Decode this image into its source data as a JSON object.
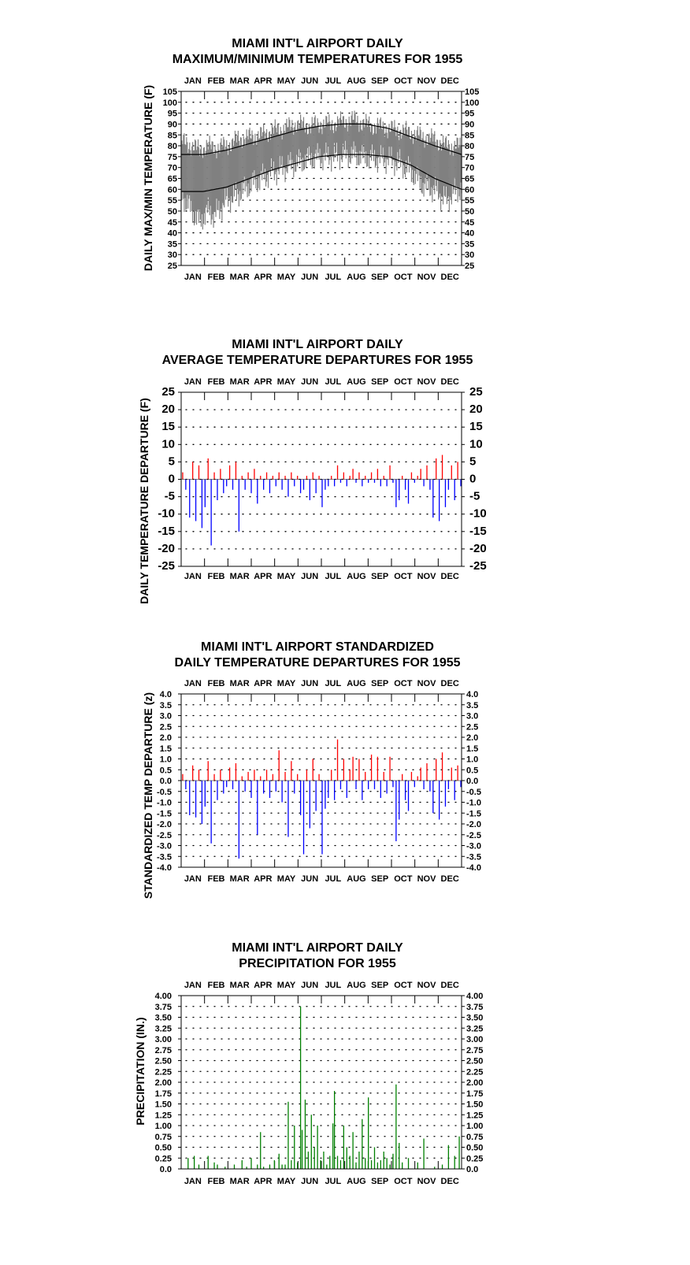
{
  "colors": {
    "max_min_band": "#808080",
    "normal_line": "#000000",
    "positive_departure": "#ff0000",
    "negative_departure": "#0000ff",
    "precipitation": "#008000"
  },
  "chart_data": [
    {
      "type": "area",
      "title_line1": "MIAMI INT'L AIRPORT DAILY",
      "title_line2": "MAXIMUM/MINIMUM TEMPERATURES FOR 1955",
      "ylabel": "DAILY MAX/MIN TEMPERATURE (F)",
      "xlabel": "",
      "months": [
        "JAN",
        "FEB",
        "MAR",
        "APR",
        "MAY",
        "JUN",
        "JUL",
        "AUG",
        "SEP",
        "OCT",
        "NOV",
        "DEC"
      ],
      "yticks": [
        "105",
        "100",
        "95",
        "90",
        "85",
        "80",
        "75",
        "70",
        "65",
        "60",
        "55",
        "50",
        "45",
        "40",
        "35",
        "30",
        "25"
      ],
      "ylim": [
        25,
        105
      ],
      "xlim": [
        1,
        365
      ],
      "grid": "dotted",
      "series": [
        {
          "kind": "daily-range",
          "x": [
            1,
            15,
            25,
            35,
            45,
            60,
            75,
            90,
            105,
            120,
            135,
            150,
            165,
            180,
            195,
            210,
            225,
            240,
            255,
            270,
            285,
            300,
            315,
            330,
            345,
            360,
            365
          ],
          "max": [
            82,
            80,
            78,
            80,
            79,
            80,
            83,
            84,
            85,
            87,
            88,
            90,
            89,
            90,
            90,
            91,
            92,
            90,
            89,
            88,
            87,
            86,
            84,
            83,
            80,
            80,
            79
          ],
          "min": [
            58,
            50,
            45,
            50,
            48,
            55,
            58,
            62,
            65,
            68,
            70,
            72,
            74,
            75,
            75,
            76,
            76,
            75,
            74,
            74,
            72,
            68,
            62,
            60,
            55,
            60,
            60
          ]
        },
        {
          "kind": "normal-max",
          "x": [
            1,
            30,
            60,
            90,
            120,
            150,
            180,
            210,
            240,
            270,
            300,
            330,
            365
          ],
          "y": [
            76,
            76,
            78,
            81,
            84,
            87,
            89,
            90,
            90,
            88,
            84,
            80,
            76
          ]
        },
        {
          "kind": "normal-min",
          "x": [
            1,
            30,
            60,
            90,
            120,
            150,
            180,
            210,
            240,
            270,
            300,
            330,
            365
          ],
          "y": [
            59,
            59,
            61,
            65,
            69,
            72,
            75,
            76,
            76,
            75,
            71,
            65,
            60
          ]
        }
      ]
    },
    {
      "type": "bar",
      "title_line1": "MIAMI INT'L AIRPORT DAILY",
      "title_line2": "AVERAGE TEMPERATURE DEPARTURES FOR 1955",
      "ylabel": "DAILY TEMPERATURE DEPARTURE (F)",
      "xlabel": "",
      "months": [
        "JAN",
        "FEB",
        "MAR",
        "APR",
        "MAY",
        "JUN",
        "JUL",
        "AUG",
        "SEP",
        "OCT",
        "NOV",
        "DEC"
      ],
      "yticks": [
        "25",
        "20",
        "15",
        "10",
        "5",
        "0",
        "-5",
        "-10",
        "-15",
        "-20",
        "-25"
      ],
      "ylim": [
        -25,
        25
      ],
      "xlim": [
        1,
        365
      ],
      "grid": "dotted",
      "x": [
        3,
        7,
        12,
        16,
        20,
        24,
        28,
        32,
        36,
        40,
        44,
        48,
        52,
        56,
        60,
        64,
        68,
        72,
        76,
        80,
        84,
        88,
        92,
        96,
        100,
        104,
        108,
        112,
        116,
        120,
        124,
        128,
        132,
        136,
        140,
        144,
        148,
        152,
        156,
        160,
        164,
        168,
        172,
        176,
        180,
        184,
        188,
        192,
        196,
        200,
        204,
        208,
        212,
        216,
        220,
        224,
        228,
        232,
        236,
        240,
        244,
        248,
        252,
        256,
        260,
        264,
        268,
        272,
        276,
        280,
        284,
        288,
        292,
        296,
        300,
        304,
        308,
        312,
        316,
        320,
        324,
        328,
        332,
        336,
        340,
        344,
        348,
        352,
        356,
        360,
        364
      ],
      "values": [
        2,
        -3,
        -11,
        5,
        -12,
        4,
        -14,
        -8,
        6,
        -19,
        2,
        -6,
        3,
        -4,
        -2,
        4,
        -3,
        5,
        -15,
        1,
        -3,
        2,
        -4,
        3,
        -7,
        1,
        -3,
        2,
        -4,
        1,
        -2,
        2,
        -3,
        1,
        -5,
        2,
        -2,
        1,
        -4,
        -3,
        1,
        -6,
        2,
        -4,
        1,
        -8,
        -3,
        -2,
        1,
        -2,
        4,
        -1,
        2,
        -2,
        1,
        3,
        -1,
        2,
        -2,
        1,
        -1,
        2,
        -1,
        3,
        -2,
        1,
        -2,
        4,
        -1,
        -8,
        -6,
        1,
        -3,
        -7,
        2,
        -1,
        1,
        3,
        -2,
        4,
        -3,
        -11,
        6,
        -12,
        7,
        -8,
        -3,
        4,
        -6,
        5,
        -2
      ]
    },
    {
      "type": "bar",
      "title_line1": "MIAMI INT'L AIRPORT STANDARDIZED",
      "title_line2": "DAILY TEMPERATURE DEPARTURES FOR 1955",
      "ylabel": "STANDARDIZED TEMP DEPARTURE (z)",
      "xlabel": "",
      "months": [
        "JAN",
        "FEB",
        "MAR",
        "APR",
        "MAY",
        "JUN",
        "JUL",
        "AUG",
        "SEP",
        "OCT",
        "NOV",
        "DEC"
      ],
      "yticks": [
        "4.0",
        "3.5",
        "3.0",
        "2.5",
        "2.0",
        "1.5",
        "1.0",
        "0.5",
        "0.0",
        "-0.5",
        "-1.0",
        "-1.5",
        "-2.0",
        "-2.5",
        "-3.0",
        "-3.5",
        "-4.0"
      ],
      "ylim": [
        -4,
        4
      ],
      "xlim": [
        1,
        365
      ],
      "grid": "dotted",
      "x": [
        3,
        7,
        12,
        16,
        20,
        24,
        28,
        32,
        36,
        40,
        44,
        48,
        52,
        56,
        60,
        64,
        68,
        72,
        76,
        80,
        84,
        88,
        92,
        96,
        100,
        104,
        108,
        112,
        116,
        120,
        124,
        128,
        132,
        136,
        140,
        144,
        148,
        152,
        156,
        160,
        164,
        168,
        172,
        176,
        180,
        184,
        188,
        192,
        196,
        200,
        204,
        208,
        212,
        216,
        220,
        224,
        228,
        232,
        236,
        240,
        244,
        248,
        252,
        256,
        260,
        264,
        268,
        272,
        276,
        280,
        284,
        288,
        292,
        296,
        300,
        304,
        308,
        312,
        316,
        320,
        324,
        328,
        332,
        336,
        340,
        344,
        348,
        352,
        356,
        360,
        364
      ],
      "values": [
        0.3,
        -0.4,
        -1.6,
        0.7,
        -1.7,
        0.5,
        -2.0,
        -1.2,
        0.9,
        -2.9,
        0.3,
        -0.9,
        0.5,
        -0.6,
        -0.3,
        0.6,
        -0.4,
        0.8,
        -3.6,
        0.2,
        -0.5,
        0.4,
        -0.8,
        0.5,
        -2.5,
        0.2,
        -0.6,
        0.5,
        -0.8,
        0.3,
        -0.5,
        1.4,
        -1.0,
        0.4,
        -2.6,
        0.9,
        -0.6,
        0.3,
        -1.6,
        -3.4,
        0.5,
        -2.2,
        1.0,
        -1.4,
        0.3,
        -3.4,
        -1.3,
        -0.8,
        0.5,
        -0.9,
        1.9,
        -0.4,
        1.0,
        -0.8,
        0.5,
        1.1,
        -0.4,
        1.0,
        -0.9,
        0.4,
        -0.4,
        1.2,
        -0.4,
        1.1,
        -0.8,
        0.4,
        -0.6,
        1.1,
        -0.3,
        -2.8,
        -1.8,
        0.3,
        -0.9,
        -1.4,
        0.4,
        -0.3,
        0.2,
        0.6,
        -0.4,
        0.8,
        -0.5,
        -1.5,
        1.0,
        -1.8,
        1.3,
        -1.2,
        -0.4,
        0.6,
        -0.9,
        0.7,
        -0.3
      ]
    },
    {
      "type": "bar",
      "title_line1": "MIAMI INT'L AIRPORT DAILY",
      "title_line2": "PRECIPITATION FOR 1955",
      "ylabel": "PRECIPITATION (IN.)",
      "xlabel": "",
      "months": [
        "JAN",
        "FEB",
        "MAR",
        "APR",
        "MAY",
        "JUN",
        "JUL",
        "AUG",
        "SEP",
        "OCT",
        "NOV",
        "DEC"
      ],
      "yticks": [
        "4.00",
        "3.75",
        "3.50",
        "3.25",
        "3.00",
        "2.75",
        "2.50",
        "2.25",
        "2.00",
        "1.75",
        "1.50",
        "1.25",
        "1.00",
        "0.75",
        "0.50",
        "0.25",
        "0.0"
      ],
      "ylim": [
        0,
        4
      ],
      "xlim": [
        1,
        365
      ],
      "grid": "dotted",
      "x": [
        10,
        18,
        24,
        36,
        44,
        48,
        58,
        70,
        80,
        86,
        92,
        100,
        104,
        108,
        116,
        122,
        128,
        132,
        136,
        140,
        144,
        148,
        152,
        156,
        158,
        162,
        166,
        170,
        174,
        178,
        182,
        186,
        190,
        194,
        198,
        200,
        204,
        208,
        212,
        216,
        220,
        224,
        228,
        232,
        236,
        240,
        244,
        248,
        252,
        256,
        260,
        264,
        268,
        272,
        276,
        280,
        284,
        288,
        296,
        308,
        316,
        330,
        340,
        348,
        356,
        362
      ],
      "values": [
        0.25,
        0.3,
        0.1,
        0.3,
        0.15,
        0.1,
        0.05,
        0.1,
        0.2,
        0.05,
        0.25,
        0.1,
        0.85,
        0.05,
        0.1,
        0.2,
        0.35,
        0.1,
        0.1,
        1.55,
        0.2,
        1.0,
        0.15,
        3.75,
        0.9,
        1.6,
        0.4,
        1.25,
        0.5,
        1.0,
        0.2,
        0.4,
        0.1,
        0.3,
        1.05,
        1.8,
        0.3,
        0.2,
        1.0,
        0.5,
        0.3,
        0.85,
        0.15,
        0.4,
        1.15,
        0.25,
        1.65,
        0.2,
        0.5,
        0.15,
        0.2,
        0.4,
        0.25,
        0.1,
        0.35,
        1.95,
        0.6,
        0.15,
        0.25,
        0.15,
        0.7,
        0.05,
        0.1,
        0.55,
        0.3,
        0.75
      ]
    }
  ]
}
